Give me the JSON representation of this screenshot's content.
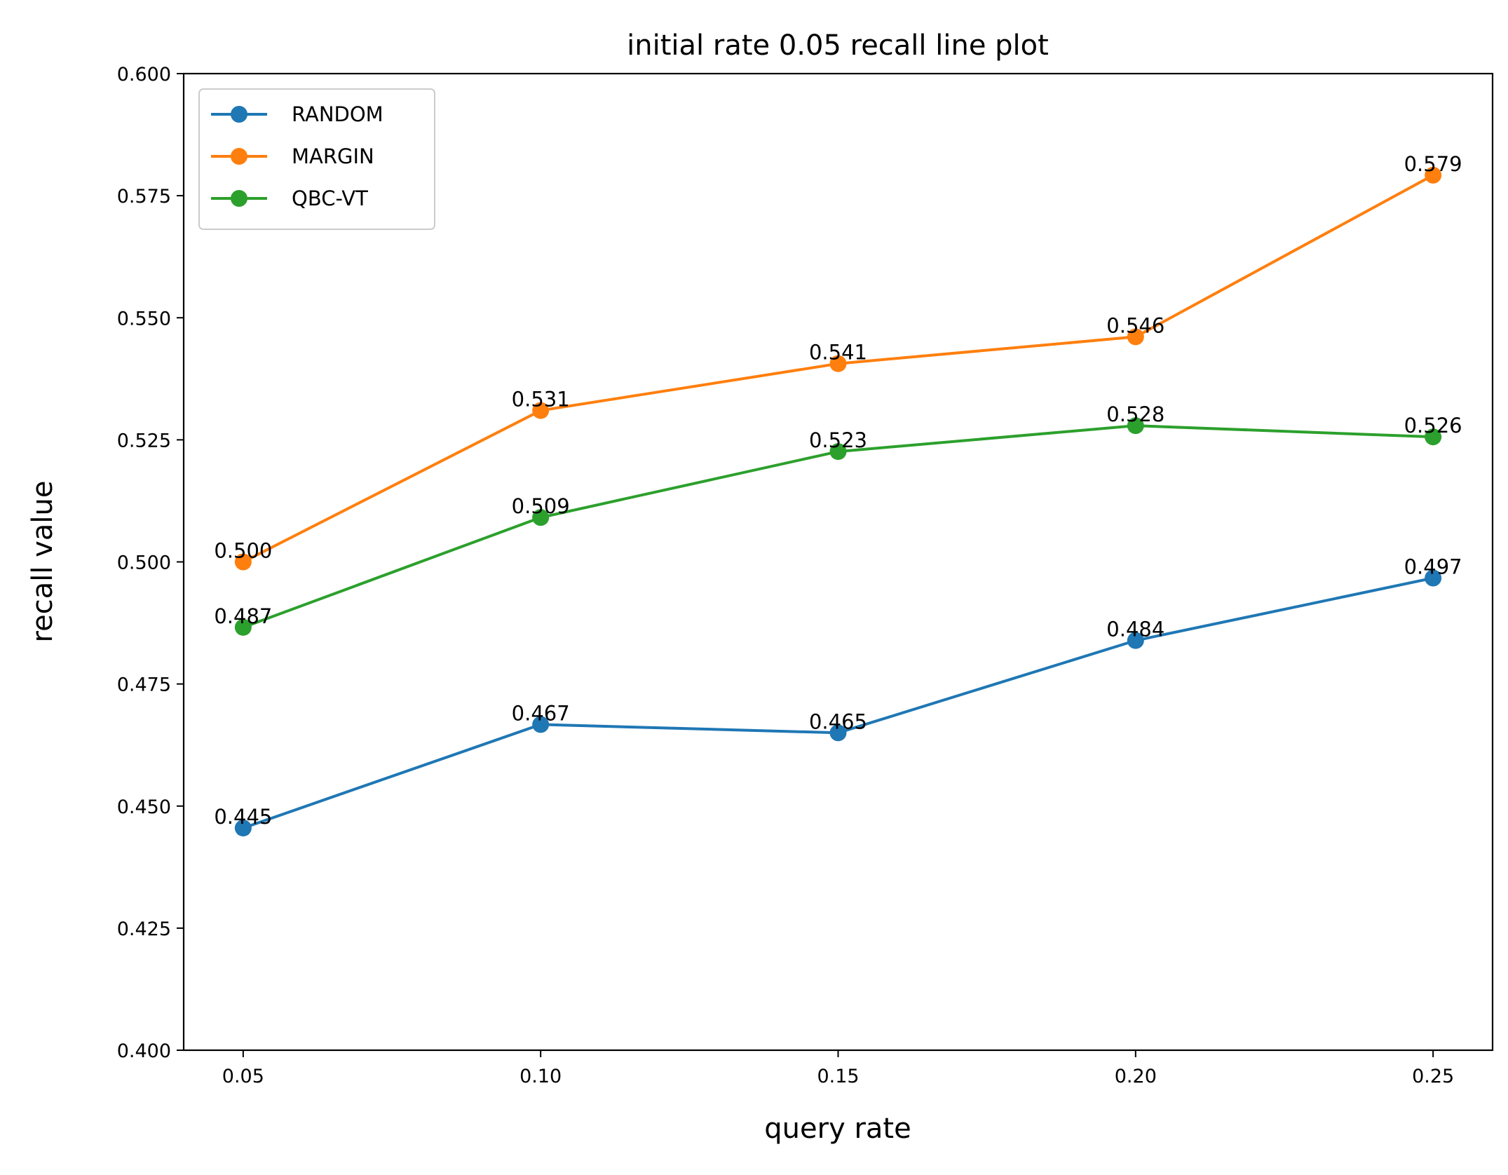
{
  "chart_data": {
    "type": "line",
    "title": "initial rate 0.05 recall line plot",
    "xlabel": "query rate",
    "ylabel": "recall value",
    "x": [
      0.05,
      0.1,
      0.15,
      0.2,
      0.25
    ],
    "x_tick_labels": [
      "0.05",
      "0.10",
      "0.15",
      "0.20",
      "0.25"
    ],
    "xlim": [
      0.04,
      0.26
    ],
    "ylim": [
      0.4,
      0.6
    ],
    "y_ticks": [
      0.4,
      0.425,
      0.45,
      0.475,
      0.5,
      0.525,
      0.55,
      0.575,
      0.6
    ],
    "y_tick_labels": [
      "0.400",
      "0.425",
      "0.450",
      "0.475",
      "0.500",
      "0.525",
      "0.550",
      "0.575",
      "0.600"
    ],
    "grid": false,
    "legend_position": "top-left",
    "series": [
      {
        "name": "RANDOM",
        "color": "#1f77b4",
        "values": [
          0.4455,
          0.4667,
          0.465,
          0.4839,
          0.4967
        ],
        "labels": [
          "0.445",
          "0.467",
          "0.465",
          "0.484",
          "0.497"
        ]
      },
      {
        "name": "MARGIN",
        "color": "#ff7f0e",
        "values": [
          0.5,
          0.531,
          0.5406,
          0.5461,
          0.5792
        ],
        "labels": [
          "0.500",
          "0.531",
          "0.541",
          "0.546",
          "0.579"
        ]
      },
      {
        "name": "QBC-VT",
        "color": "#2ca02c",
        "values": [
          0.4866,
          0.5091,
          0.5226,
          0.5279,
          0.5256
        ],
        "labels": [
          "0.487",
          "0.509",
          "0.523",
          "0.528",
          "0.526"
        ]
      }
    ]
  }
}
